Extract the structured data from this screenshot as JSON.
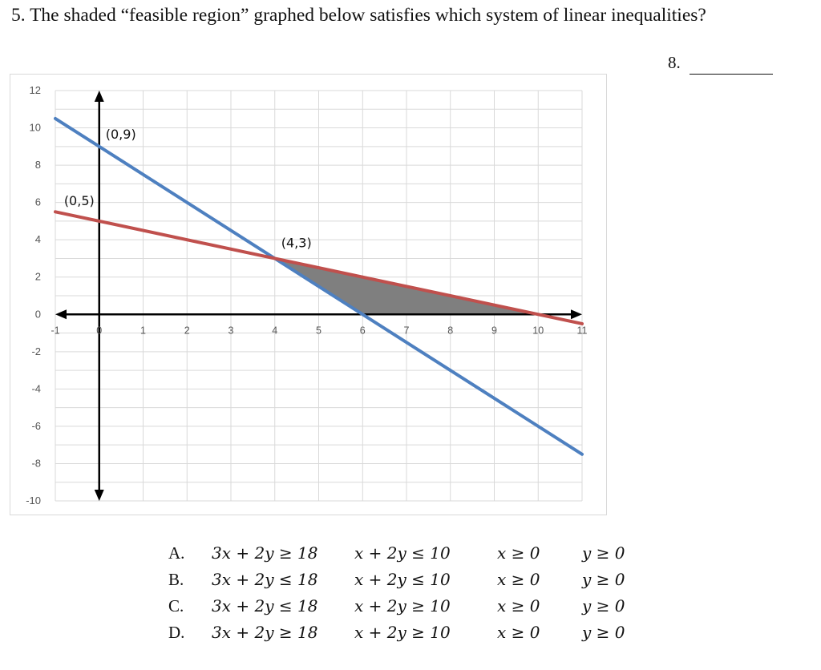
{
  "question": {
    "text": "5.  The shaded “feasible region” graphed below satisfies which system of linear inequalities?",
    "answer_label": "8."
  },
  "chart_data": {
    "type": "line",
    "x_ticks": [
      "-1",
      "0",
      "1",
      "2",
      "3",
      "4",
      "5",
      "6",
      "7",
      "8",
      "9",
      "10",
      "11"
    ],
    "y_ticks": [
      "12",
      "10",
      "8",
      "6",
      "4",
      "2",
      "0",
      "-2",
      "-4",
      "-6",
      "-8",
      "-10"
    ],
    "xlim": [
      -1,
      11
    ],
    "ylim": [
      -10,
      12
    ],
    "grid": true,
    "series": [
      {
        "color": "#4e80c0",
        "points": [
          [
            -1,
            10.5
          ],
          [
            11,
            -7.5
          ]
        ]
      },
      {
        "color": "#c0504d",
        "points": [
          [
            -1,
            5.5
          ],
          [
            11,
            -0.5
          ]
        ]
      }
    ],
    "shaded_region": {
      "color": "#7f7f7f",
      "points": [
        [
          4,
          3
        ],
        [
          6,
          0
        ],
        [
          10,
          0
        ]
      ]
    },
    "point_labels": [
      {
        "text": "(0,9)",
        "x": 0,
        "y": 9
      },
      {
        "text": "(0,5)",
        "x": 0,
        "y": 5
      },
      {
        "text": "(4,3)",
        "x": 4,
        "y": 3
      }
    ]
  },
  "choices": [
    {
      "letter": "A.",
      "i1": "3x + 2y ≥ 18",
      "i2": "x + 2y ≤ 10",
      "i3": "x ≥ 0",
      "i4": "y ≥ 0"
    },
    {
      "letter": "B.",
      "i1": "3x + 2y ≤ 18",
      "i2": "x + 2y ≤ 10",
      "i3": "x ≥ 0",
      "i4": "y ≥ 0"
    },
    {
      "letter": "C.",
      "i1": "3x + 2y ≤ 18",
      "i2": "x + 2y ≥ 10",
      "i3": "x ≥ 0",
      "i4": "y ≥ 0"
    },
    {
      "letter": "D.",
      "i1": "3x + 2y ≥ 18",
      "i2": "x + 2y ≥ 10",
      "i3": "x ≥ 0",
      "i4": "y ≥ 0"
    }
  ]
}
